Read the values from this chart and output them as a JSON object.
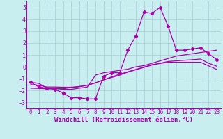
{
  "x": [
    0,
    1,
    2,
    3,
    4,
    5,
    6,
    7,
    8,
    9,
    10,
    11,
    12,
    13,
    14,
    15,
    16,
    17,
    18,
    19,
    20,
    21,
    22,
    23
  ],
  "windchill": [
    -1.3,
    -1.7,
    -1.8,
    -1.9,
    -2.2,
    -2.6,
    -2.6,
    -2.7,
    -2.7,
    -0.8,
    -0.5,
    -0.5,
    1.4,
    2.6,
    4.6,
    4.5,
    5.0,
    3.4,
    1.4,
    1.4,
    1.5,
    1.6,
    1.1,
    0.6
  ],
  "line2": [
    -1.3,
    -1.4,
    -1.8,
    -1.8,
    -1.9,
    -1.9,
    -1.8,
    -1.7,
    -0.7,
    -0.5,
    -0.4,
    -0.3,
    -0.2,
    0.0,
    0.1,
    0.3,
    0.5,
    0.7,
    0.9,
    1.0,
    1.1,
    1.2,
    1.3,
    1.4
  ],
  "line3": [
    -1.5,
    -1.55,
    -1.7,
    -1.7,
    -1.72,
    -1.72,
    -1.65,
    -1.55,
    -1.35,
    -1.1,
    -0.9,
    -0.7,
    -0.45,
    -0.25,
    -0.05,
    0.15,
    0.3,
    0.45,
    0.5,
    0.55,
    0.6,
    0.65,
    0.3,
    0.05
  ],
  "line4": [
    -1.8,
    -1.82,
    -1.85,
    -1.85,
    -1.85,
    -1.75,
    -1.68,
    -1.55,
    -1.35,
    -1.1,
    -0.85,
    -0.62,
    -0.42,
    -0.22,
    -0.02,
    0.18,
    0.28,
    0.38,
    0.38,
    0.38,
    0.38,
    0.38,
    0.08,
    -0.22
  ],
  "line_color": "#aa00aa",
  "bg_color": "#c8eef0",
  "grid_color": "#b0d0d8",
  "xlabel": "Windchill (Refroidissement éolien,°C)",
  "ylim": [
    -3.5,
    5.5
  ],
  "xlim": [
    -0.5,
    23.5
  ],
  "yticks": [
    -3,
    -2,
    -1,
    0,
    1,
    2,
    3,
    4,
    5
  ],
  "xticks": [
    0,
    1,
    2,
    3,
    4,
    5,
    6,
    7,
    8,
    9,
    10,
    11,
    12,
    13,
    14,
    15,
    16,
    17,
    18,
    19,
    20,
    21,
    22,
    23
  ],
  "xlabel_fontsize": 6.5,
  "tick_fontsize": 5.5,
  "ytick_fontsize": 6.0
}
